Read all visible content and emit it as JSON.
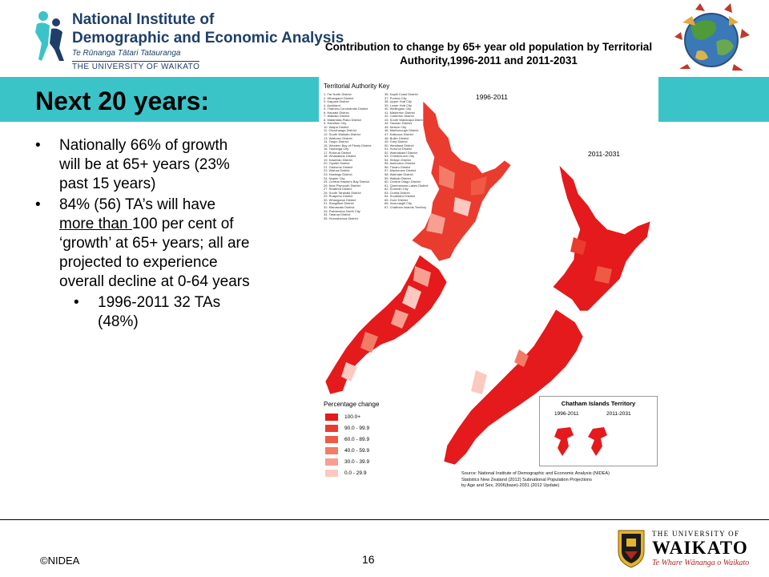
{
  "header": {
    "org_line1": "National Institute of",
    "org_line2": "Demographic and Economic Analysis",
    "org_maori": "Te Rūnanga Tātari Tatauranga",
    "org_university": "THE UNIVERSITY OF WAIKATO"
  },
  "slide": {
    "title": "Next 20 years:",
    "bullets": [
      {
        "text": "Nationally 66% of growth will be at 65+ years (23% past 15 years)"
      },
      {
        "pre": "84% (56) TA’s will have ",
        "underlined": "more than ",
        "post": "100 per cent of ‘growth’ at 65+ years; all are projected to experience overall decline at 0-64 years"
      }
    ],
    "sub_bullets": [
      {
        "text": "1996-2011 32 TAs (48%)"
      }
    ],
    "bullet_glyph": "•"
  },
  "figure": {
    "title": "Contribution to change by 65+ year old population by Territorial Authority,1996-2011 and 2011-2031",
    "key_title": "Territorial Authority Key",
    "key_items": [
      "1.  Far North District",
      "2.  Whangarei District",
      "3.  Kaipara District",
      "4.  Auckland",
      "5.  Thames-Coromandel District",
      "6.  Hauraki District",
      "7.  Waikato District",
      "8.  Matamata-Piako District",
      "9.  Hamilton City",
      "10. Waipa District",
      "11. Otorohanga District",
      "12. South Waikato District",
      "13. Waitomo District",
      "14. Taupo District",
      "15. Western Bay of Plenty District",
      "16. Tauranga City",
      "17. Rotorua District",
      "18. Whakatane District",
      "19. Kawerau District",
      "20. Opotiki District",
      "21. Gisborne District",
      "22. Wairoa District",
      "23. Hastings District",
      "24. Napier City",
      "25. Central Hawke's Bay District",
      "26. New Plymouth District",
      "27. Stratford District",
      "28. South Taranaki District",
      "29. Ruapehu District",
      "30. Whanganui District",
      "31. Rangitikei District",
      "32. Manawatu District",
      "33. Palmerston North City",
      "34. Tararua District",
      "35. Horowhenua District",
      "36. Kapiti Coast District",
      "37. Porirua City",
      "38. Upper Hutt City",
      "39. Lower Hutt City",
      "40. Wellington City",
      "41. Masterton District",
      "42. Carterton District",
      "43. South Wairarapa District",
      "44. Tasman District",
      "45. Nelson City",
      "46. Marlborough District",
      "47. Kaikoura District",
      "48. Buller District",
      "49. Grey District",
      "50. Westland District",
      "51. Hurunui District",
      "52. Waimakariri District",
      "53. Christchurch City",
      "54. Selwyn District",
      "55. Ashburton District",
      "56. Timaru District",
      "57. Mackenzie District",
      "58. Waimate District",
      "59. Waitaki District",
      "60. Central Otago District",
      "61. Queenstown-Lakes District",
      "62. Dunedin City",
      "63. Clutha District",
      "64. Southland District",
      "65. Gore District",
      "66. Invercargill City",
      "67. Chatham Islands Territory"
    ],
    "period_a": "1996-2011",
    "period_b": "2011-2031",
    "legend_title": "Percentage change",
    "legend": [
      {
        "label": "100.0+",
        "color": "#e41a1c"
      },
      {
        "label": "90.0 - 99.9",
        "color": "#ea3b2f"
      },
      {
        "label": "60.0 - 89.9",
        "color": "#ef5a45"
      },
      {
        "label": "40.0 - 59.9",
        "color": "#f37c68"
      },
      {
        "label": "30.0 - 39.9",
        "color": "#f7a091"
      },
      {
        "label": "0.0 - 29.9",
        "color": "#fbc9c0"
      }
    ],
    "chatham_title": "Chatham Islands Territory",
    "chatham_period_a": "1996-2011",
    "chatham_period_b": "2011-2031",
    "source_line1": "Source: National Institute of Demographic and Economic Analysis (NIDEA)",
    "source_line2": "Statistics New Zealand (2012) Subnational Population Projections",
    "source_line3": "by Age and Sex, 2006(base)-2031 (2012 Update)"
  },
  "footer": {
    "copyright": "©NIDEA",
    "page_number": "16",
    "uni_line1": "THE UNIVERSITY OF",
    "uni_line2": "WAIKATO",
    "uni_maori": "Te Whare Wānanga o Waikato"
  },
  "colors": {
    "teal_bar": "#3bc4c8",
    "map_red": "#e41a1c",
    "nidea_navy": "#1f3f6a",
    "waikato_red": "#b0281f"
  }
}
